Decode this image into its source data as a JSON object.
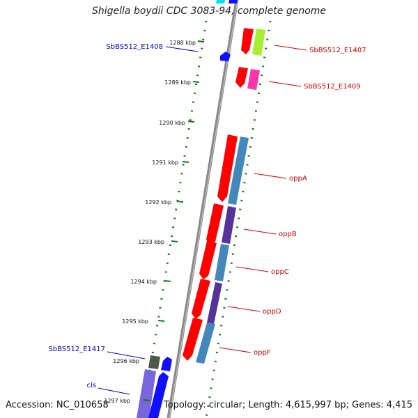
{
  "title": "Shigella boydii CDC 3083-94, complete genome",
  "footer": {
    "accession": "Accession: NC_010658",
    "topology": "Topology: circular; Length: 4,615,997 bp; Genes: 4,415"
  },
  "colors": {
    "backbone": "#808080",
    "tick": "#117711",
    "forward_label": "#cc0000",
    "reverse_label": "#0000cc"
  },
  "axis_ticks": [
    {
      "label": "1288 kbp",
      "kbp": 1288
    },
    {
      "label": "1289 kbp",
      "kbp": 1289
    },
    {
      "label": "1290 kbp",
      "kbp": 1290
    },
    {
      "label": "1291 kbp",
      "kbp": 1291
    },
    {
      "label": "1292 kbp",
      "kbp": 1292
    },
    {
      "label": "1293 kbp",
      "kbp": 1293
    },
    {
      "label": "1294 kbp",
      "kbp": 1294
    },
    {
      "label": "1295 kbp",
      "kbp": 1295
    },
    {
      "label": "1296 kbp",
      "kbp": 1296
    },
    {
      "label": "1297 kbp",
      "kbp": 1297
    }
  ],
  "gene_labels": [
    {
      "text": "SbBS512_E1407",
      "strand": "forward"
    },
    {
      "text": "SbBS512_E1409",
      "strand": "forward"
    },
    {
      "text": "oppA",
      "strand": "forward"
    },
    {
      "text": "oppB",
      "strand": "forward"
    },
    {
      "text": "oppC",
      "strand": "forward"
    },
    {
      "text": "oppD",
      "strand": "forward"
    },
    {
      "text": "oppF",
      "strand": "forward"
    },
    {
      "text": "SbBS512_E1408",
      "strand": "reverse"
    },
    {
      "text": "SbBS512_E1417",
      "strand": "reverse"
    },
    {
      "text": "cls",
      "strand": "reverse"
    }
  ]
}
